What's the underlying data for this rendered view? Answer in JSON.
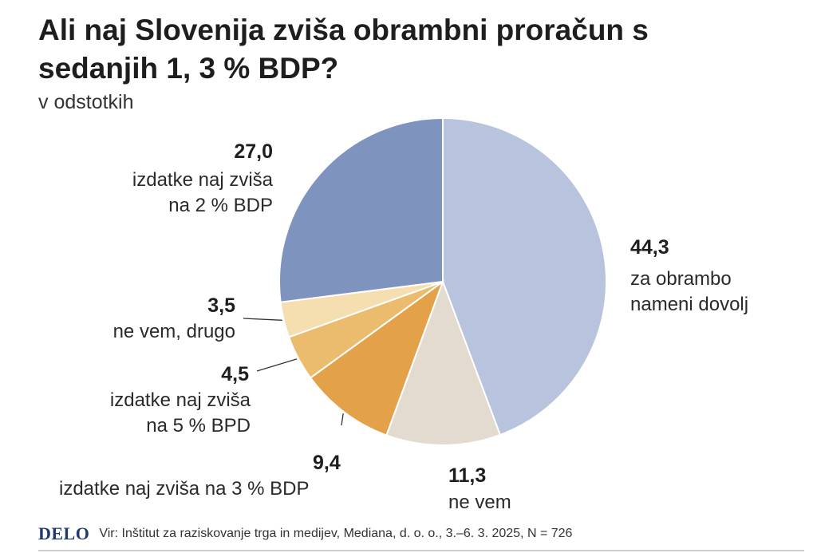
{
  "title": "Ali naj Slovenija zviša obrambni proračun s sedanjih 1, 3 % BDP?",
  "subtitle": "v odstotkih",
  "chart_data": {
    "type": "pie",
    "title": "Ali naj Slovenija zviša obrambni proračun s sedanjih 1, 3 % BDP?",
    "unit": "v odstotkih",
    "slices": [
      {
        "label": "za obrambo nameni dovolj",
        "value_text": "44,3",
        "value": 44.3,
        "color": "#b8c3de"
      },
      {
        "label": "ne vem",
        "value_text": "11,3",
        "value": 11.3,
        "color": "#e3dad0"
      },
      {
        "label": "izdatke naj zviša na 3 % BDP",
        "value_text": "9,4",
        "value": 9.4,
        "color": "#e3a24a"
      },
      {
        "label": "izdatke naj zviša na 5 % BPD",
        "value_text": "4,5",
        "value": 4.5,
        "color": "#ecbc6e"
      },
      {
        "label": "ne vem, drugo",
        "value_text": "3,5",
        "value": 3.5,
        "color": "#f5deaf"
      },
      {
        "label": "izdatke naj zviša na 2 % BDP",
        "value_text": "27,0",
        "value": 27.0,
        "color": "#7f93bf"
      }
    ]
  },
  "labels": {
    "s0_text": "za obrambo\nnameni dovolj",
    "s1_text": "ne vem",
    "s2_text": "izdatke naj zviša na 3 % BDP",
    "s3_text": "izdatke naj zviša\nna 5 % BPD",
    "s4_text": "ne vem, drugo",
    "s5_text": "izdatke naj zviša\nna 2 % BDP"
  },
  "footer": {
    "logo": "DELO",
    "source": "Vir: Inštitut za raziskovanje trga in medijev, Mediana, d. o. o., 3.–6. 3. 2025, N = 726"
  }
}
